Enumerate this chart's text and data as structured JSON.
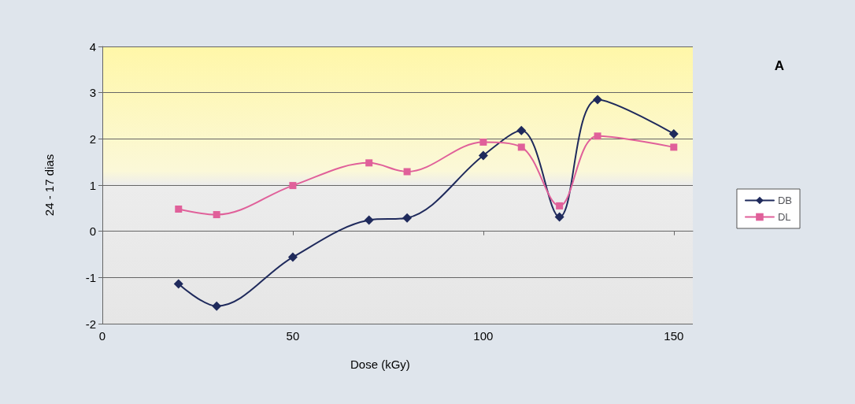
{
  "chart_data": {
    "type": "line",
    "xlabel": "Dose (kGy)",
    "ylabel": "24 - 17 dias",
    "annotations": [
      "A"
    ],
    "x": [
      20,
      30,
      50,
      70,
      80,
      100,
      110,
      120,
      130,
      150
    ],
    "series": [
      {
        "name": "DB",
        "color": "#1f2a5c",
        "marker": "diamond",
        "values": [
          -1.14,
          -1.62,
          -0.56,
          0.24,
          0.29,
          1.64,
          2.18,
          0.31,
          2.85,
          2.11
        ]
      },
      {
        "name": "DL",
        "color": "#e0609a",
        "marker": "square",
        "values": [
          0.48,
          0.36,
          0.99,
          1.48,
          1.29,
          1.93,
          1.82,
          0.55,
          2.06,
          1.82
        ]
      }
    ],
    "xlim": [
      0,
      155
    ],
    "xticks": [
      0,
      50,
      100,
      150
    ],
    "ylim": [
      -2,
      4
    ],
    "yticks": [
      -2,
      -1,
      0,
      1,
      2,
      3,
      4
    ],
    "grid": "y",
    "legend": "right",
    "line_style": "solid"
  }
}
